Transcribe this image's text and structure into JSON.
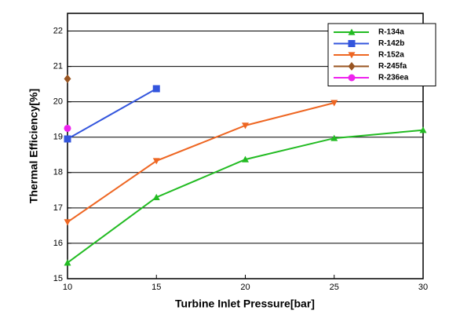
{
  "chart_data": {
    "type": "line",
    "xlabel": "Turbine Inlet Pressure[bar]",
    "ylabel": "Thermal Efficiency[%]",
    "xlim": [
      10,
      30
    ],
    "xticks": [
      10,
      15,
      20,
      25,
      30
    ],
    "ylim": [
      15,
      22.5
    ],
    "yticks": [
      15,
      16,
      17,
      18,
      19,
      20,
      21,
      22
    ],
    "grid": true,
    "legend": "upper right",
    "series": [
      {
        "name": "R-134a",
        "color": "#22bb22",
        "marker": "triangle-up",
        "x": [
          10,
          15,
          20,
          25,
          30
        ],
        "values": [
          15.45,
          17.3,
          18.37,
          18.97,
          19.2
        ]
      },
      {
        "name": "R-142b",
        "color": "#3355dd",
        "marker": "square",
        "x": [
          10,
          15
        ],
        "values": [
          18.95,
          20.37
        ]
      },
      {
        "name": "R-152a",
        "color": "#ee6622",
        "marker": "triangle-down",
        "x": [
          10,
          15,
          20,
          25
        ],
        "values": [
          16.6,
          18.33,
          19.33,
          19.97
        ]
      },
      {
        "name": "R-245fa",
        "color": "#995522",
        "marker": "diamond",
        "x": [
          10
        ],
        "values": [
          20.65
        ]
      },
      {
        "name": "R-236ea",
        "color": "#ee22ee",
        "marker": "circle",
        "x": [
          10
        ],
        "values": [
          19.25
        ]
      }
    ]
  }
}
